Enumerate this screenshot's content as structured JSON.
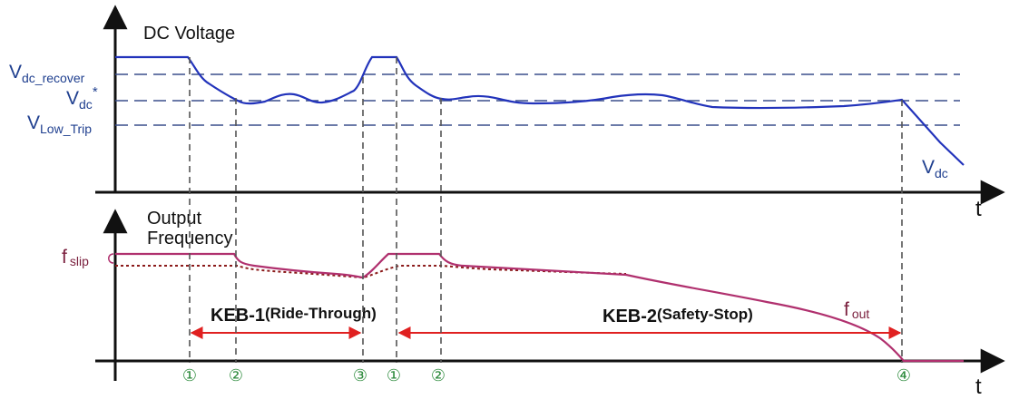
{
  "top_panel": {
    "title": "DC Voltage",
    "levels": {
      "recover": {
        "main": "V",
        "sub": "dc_recover"
      },
      "ref": {
        "main": "V",
        "sub": "dc",
        "sup": "*"
      },
      "low_trip": {
        "main": "V",
        "sub": "Low_Trip"
      }
    },
    "curve_label": {
      "main": "V",
      "sub": "dc"
    },
    "axis_label": "t"
  },
  "bottom_panel": {
    "title_line1": "Output",
    "title_line2": "Frequency",
    "slip_label": {
      "main": "f",
      "sub": "slip"
    },
    "fout_label": {
      "main": "f",
      "sub": "out"
    },
    "axis_label": "t"
  },
  "intervals": {
    "keb1": {
      "name": "KEB-1",
      "desc": "(Ride-Through)"
    },
    "keb2": {
      "name": "KEB-2",
      "desc": "(Safety-Stop)"
    }
  },
  "markers": [
    "①",
    "②",
    "③",
    "①",
    "②",
    "④"
  ],
  "colors": {
    "voltage_curve": "#2233bb",
    "frequency_curve": "#b0306e",
    "reference_dotted": "#8b1a1a",
    "arrow": "#e02020",
    "marker": "#2e8b3d",
    "dashed_guides": "#555555",
    "level_lines": "#3a4f8c"
  }
}
